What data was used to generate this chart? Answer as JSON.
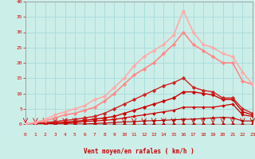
{
  "title": "",
  "xlabel": "Vent moyen/en rafales ( km/h )",
  "ylabel": "",
  "xlim": [
    0,
    23
  ],
  "ylim": [
    0,
    40
  ],
  "xticks": [
    0,
    1,
    2,
    3,
    4,
    5,
    6,
    7,
    8,
    9,
    10,
    11,
    12,
    13,
    14,
    15,
    16,
    17,
    18,
    19,
    20,
    21,
    22,
    23
  ],
  "yticks": [
    0,
    5,
    10,
    15,
    20,
    25,
    30,
    35,
    40
  ],
  "background_color": "#cceee8",
  "grid_color": "#aadddd",
  "series": [
    {
      "x": [
        0,
        1,
        2,
        3,
        4,
        5,
        6,
        7,
        8,
        9,
        10,
        11,
        12,
        13,
        14,
        15,
        16,
        17,
        18,
        19,
        20,
        21,
        22,
        23
      ],
      "y": [
        0,
        0,
        0,
        0,
        0,
        0,
        0,
        0,
        0,
        0,
        0,
        0,
        0,
        0,
        0,
        0,
        0,
        0,
        0,
        0,
        0,
        0,
        0,
        0
      ],
      "color": "#bb0000",
      "lw": 0.8,
      "ms": 2.0
    },
    {
      "x": [
        0,
        1,
        2,
        3,
        4,
        5,
        6,
        7,
        8,
        9,
        10,
        11,
        12,
        13,
        14,
        15,
        16,
        17,
        18,
        19,
        20,
        21,
        22,
        23
      ],
      "y": [
        0,
        0,
        0,
        0,
        0,
        0,
        0,
        0,
        0,
        0,
        0,
        0,
        0,
        0,
        0,
        0,
        0,
        0,
        0,
        0,
        0,
        0,
        0,
        0
      ],
      "color": "#bb0000",
      "lw": 0.8,
      "ms": 2.0
    },
    {
      "x": [
        0,
        1,
        2,
        3,
        4,
        5,
        6,
        7,
        8,
        9,
        10,
        11,
        12,
        13,
        14,
        15,
        16,
        17,
        18,
        19,
        20,
        21,
        22,
        23
      ],
      "y": [
        0,
        0,
        0,
        0,
        0,
        0,
        0,
        0.2,
        0.3,
        0.5,
        0.7,
        0.8,
        1.0,
        1.1,
        1.2,
        1.4,
        1.5,
        1.6,
        1.8,
        2.0,
        2.2,
        2.0,
        1.0,
        1.0
      ],
      "color": "#bb0000",
      "lw": 0.8,
      "ms": 2.0
    },
    {
      "x": [
        0,
        1,
        2,
        3,
        4,
        5,
        6,
        7,
        8,
        9,
        10,
        11,
        12,
        13,
        14,
        15,
        16,
        17,
        18,
        19,
        20,
        21,
        22,
        23
      ],
      "y": [
        0,
        0,
        0,
        0.2,
        0.3,
        0.5,
        0.8,
        1.0,
        1.2,
        1.5,
        2.0,
        2.5,
        3.0,
        3.5,
        4.0,
        4.5,
        5.5,
        5.5,
        5.5,
        5.5,
        6.0,
        6.5,
        3.0,
        2.5
      ],
      "color": "#cc0000",
      "lw": 0.9,
      "ms": 2.0
    },
    {
      "x": [
        0,
        1,
        2,
        3,
        4,
        5,
        6,
        7,
        8,
        9,
        10,
        11,
        12,
        13,
        14,
        15,
        16,
        17,
        18,
        19,
        20,
        21,
        22,
        23
      ],
      "y": [
        0,
        0,
        0.2,
        0.4,
        0.6,
        0.9,
        1.2,
        1.6,
        2.0,
        2.5,
        3.5,
        4.5,
        5.5,
        6.5,
        7.5,
        8.5,
        10.5,
        10.5,
        10.0,
        9.5,
        8.0,
        8.0,
        4.0,
        3.0
      ],
      "color": "#cc0000",
      "lw": 1.0,
      "ms": 2.5
    },
    {
      "x": [
        0,
        1,
        2,
        3,
        4,
        5,
        6,
        7,
        8,
        9,
        10,
        11,
        12,
        13,
        14,
        15,
        16,
        17,
        18,
        19,
        20,
        21,
        22,
        23
      ],
      "y": [
        0,
        0.2,
        0.5,
        0.8,
        1.2,
        1.5,
        2.0,
        2.5,
        3.5,
        5.0,
        6.5,
        8.0,
        9.5,
        11.0,
        12.5,
        13.5,
        15.0,
        12.0,
        11.0,
        10.5,
        8.5,
        8.5,
        5.0,
        3.5
      ],
      "color": "#cc2222",
      "lw": 1.0,
      "ms": 2.5
    },
    {
      "x": [
        0,
        1,
        2,
        3,
        4,
        5,
        6,
        7,
        8,
        9,
        10,
        11,
        12,
        13,
        14,
        15,
        16,
        17,
        18,
        19,
        20,
        21,
        22,
        23
      ],
      "y": [
        0,
        0.5,
        1.0,
        2.0,
        3.0,
        3.5,
        4.5,
        5.5,
        7.5,
        10,
        13,
        16,
        18,
        20,
        23,
        26,
        30,
        26,
        24,
        22,
        20,
        20,
        14,
        13
      ],
      "color": "#ff8888",
      "lw": 1.2,
      "ms": 2.5
    },
    {
      "x": [
        0,
        1,
        2,
        3,
        4,
        5,
        6,
        7,
        8,
        9,
        10,
        11,
        12,
        13,
        14,
        15,
        16,
        17,
        18,
        19,
        20,
        21,
        22,
        23
      ],
      "y": [
        0,
        0.5,
        1.5,
        3.0,
        4.0,
        5.0,
        6.0,
        8.0,
        9.0,
        12,
        15,
        19,
        22,
        24,
        26,
        29,
        37,
        30,
        26,
        25,
        23,
        22,
        17,
        13
      ],
      "color": "#ffaaaa",
      "lw": 1.2,
      "ms": 2.5
    }
  ]
}
